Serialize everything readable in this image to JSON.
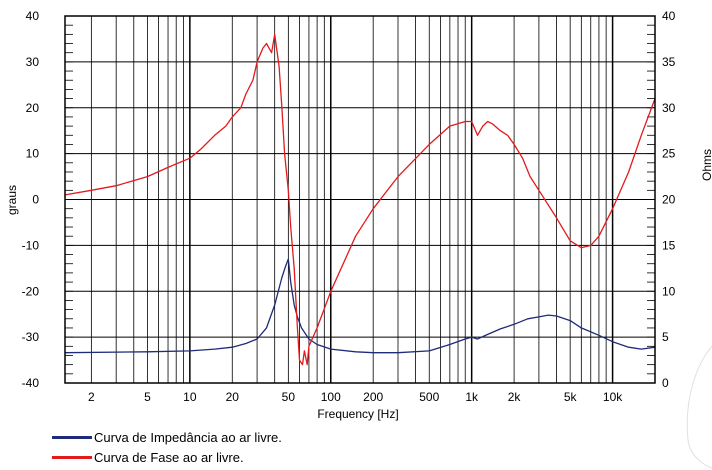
{
  "chart_data": {
    "type": "line",
    "xlabel": "Frequency [Hz]",
    "ylabel_left": "graus",
    "ylabel_right": "Ohms",
    "x_scale": "log",
    "xlim": [
      1.3,
      20000
    ],
    "ylim_left": [
      -40,
      40
    ],
    "ylim_right": [
      0,
      40
    ],
    "grid": true,
    "x_ticks": [
      {
        "value": 2,
        "label": "2"
      },
      {
        "value": 5,
        "label": "5"
      },
      {
        "value": 10,
        "label": "10"
      },
      {
        "value": 20,
        "label": "20"
      },
      {
        "value": 50,
        "label": "50"
      },
      {
        "value": 100,
        "label": "100"
      },
      {
        "value": 200,
        "label": "200"
      },
      {
        "value": 500,
        "label": "500"
      },
      {
        "value": 1000,
        "label": "1k"
      },
      {
        "value": 2000,
        "label": "2k"
      },
      {
        "value": 5000,
        "label": "5k"
      },
      {
        "value": 10000,
        "label": "10k"
      }
    ],
    "y_ticks_left": [
      -40,
      -30,
      -20,
      -10,
      0,
      10,
      20,
      30,
      40
    ],
    "y_ticks_right": [
      0,
      5,
      10,
      15,
      20,
      25,
      30,
      35,
      40
    ],
    "series": [
      {
        "name": "Curva de Impedância ao ar livre.",
        "axis": "right",
        "color": "#1f2a7a",
        "x": [
          1.3,
          5,
          10,
          15,
          20,
          25,
          30,
          35,
          40,
          45,
          48,
          50,
          52,
          55,
          58,
          62,
          70,
          80,
          100,
          150,
          200,
          300,
          500,
          700,
          900,
          1000,
          1100,
          1300,
          1600,
          2000,
          2500,
          3000,
          3500,
          4000,
          5000,
          6000,
          8000,
          10000,
          13000,
          16000,
          20000
        ],
        "y": [
          3.3,
          3.4,
          3.5,
          3.7,
          3.9,
          4.3,
          4.8,
          6,
          8.5,
          11.5,
          12.8,
          13.5,
          11,
          8.5,
          7.2,
          6,
          4.8,
          4.2,
          3.7,
          3.4,
          3.3,
          3.3,
          3.5,
          4.2,
          4.8,
          5.0,
          4.8,
          5.3,
          5.9,
          6.4,
          7.0,
          7.2,
          7.4,
          7.3,
          6.8,
          6.0,
          5.2,
          4.5,
          3.9,
          3.7,
          3.9
        ]
      },
      {
        "name": "Curva de Fase ao ar livre.",
        "axis": "left",
        "color": "#e31a1c",
        "x": [
          1.3,
          2,
          3,
          5,
          7,
          10,
          12,
          15,
          18,
          20,
          23,
          25,
          28,
          30,
          33,
          35,
          38,
          40,
          43,
          45,
          47,
          50,
          52,
          55,
          58,
          60,
          63,
          65,
          68,
          70,
          80,
          100,
          150,
          200,
          300,
          500,
          700,
          900,
          1000,
          1100,
          1200,
          1300,
          1400,
          1600,
          1800,
          2000,
          2300,
          2600,
          3000,
          4000,
          5000,
          6000,
          7000,
          8000,
          10000,
          13000,
          16000,
          20000
        ],
        "y": [
          1,
          2,
          3,
          5,
          7,
          9,
          11,
          14,
          16,
          18,
          20,
          23,
          26,
          30,
          33,
          34,
          32,
          36,
          29,
          20,
          10,
          2,
          -6,
          -15,
          -28,
          -35,
          -36,
          -33,
          -36,
          -32,
          -28,
          -20,
          -8,
          -2,
          5,
          12,
          16,
          17,
          17,
          14,
          16,
          17,
          16.5,
          15,
          14,
          12,
          9,
          5,
          2,
          -4,
          -9,
          -10.5,
          -10,
          -8,
          -2,
          6,
          14,
          22
        ]
      }
    ]
  },
  "legend": {
    "items": [
      {
        "label": "Curva de Impedância ao ar livre.",
        "color": "#1f2a7a"
      },
      {
        "label": "Curva de Fase ao ar livre.",
        "color": "#e31a1c"
      }
    ]
  }
}
